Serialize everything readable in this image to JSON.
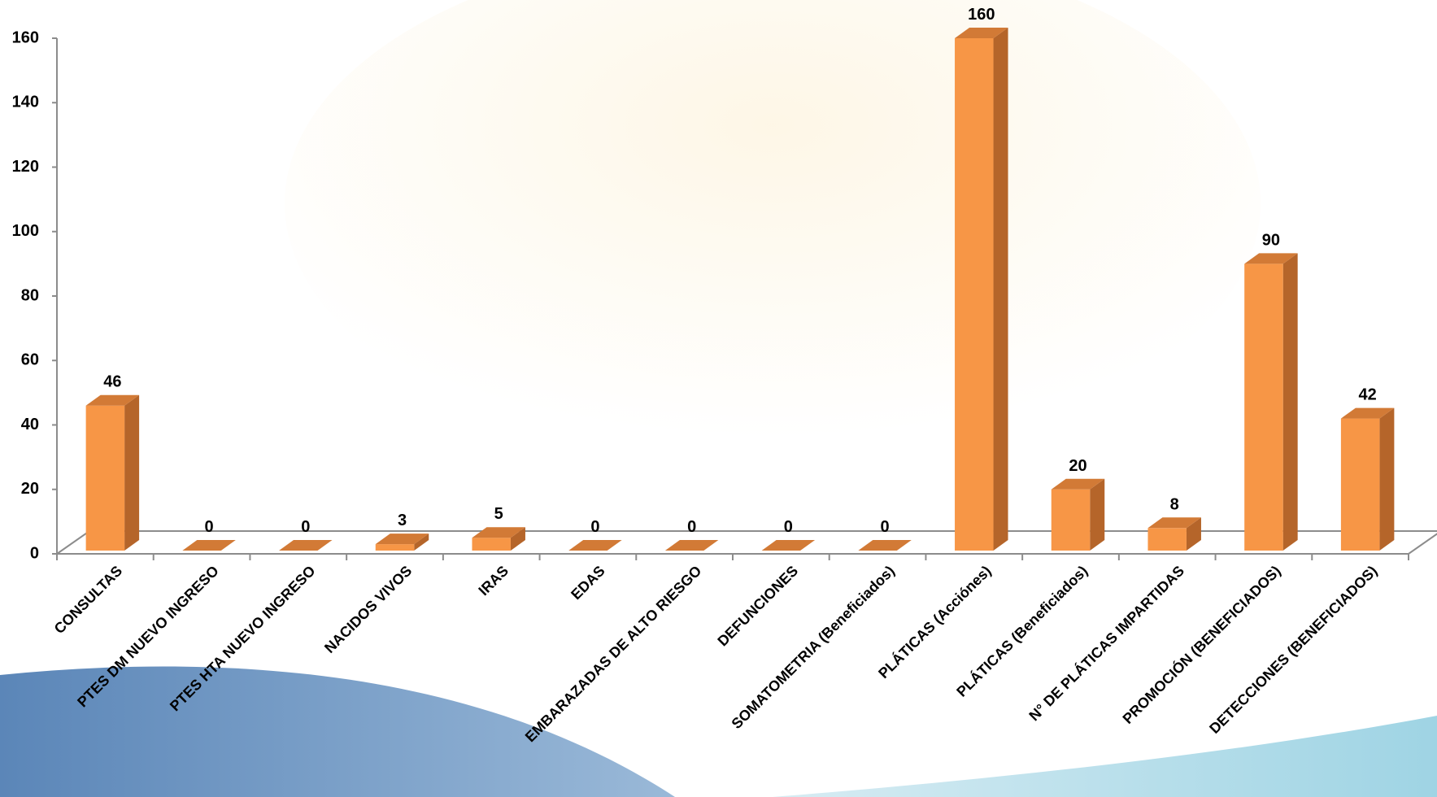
{
  "chart_data": {
    "type": "bar3d",
    "categories": [
      "CONSULTAS",
      "PTES DM NUEVO INGRESO",
      "PTES HTA NUEVO INGRESO",
      "NACIDOS VIVOS",
      "IRAS",
      "EDAS",
      "EMBARAZADAS DE ALTO RIESGO",
      "DEFUNCIONES",
      "SOMATOMETRIA (Beneficiados)",
      "PLÁTICAS (Acciónes)",
      "PLÁTICAS (Beneficiados)",
      "N° DE PLÁTICAS IMPARTIDAS",
      "PROMOCIÓN (BENEFICIADOS)",
      "DETECCIONES (BENEFICIADOS)"
    ],
    "values": [
      46,
      0,
      0,
      3,
      5,
      0,
      0,
      0,
      0,
      160,
      20,
      8,
      90,
      42
    ],
    "color": "#f79646",
    "ylim": [
      0,
      160
    ],
    "yticks": [
      0,
      20,
      40,
      60,
      80,
      100,
      120,
      140,
      160
    ]
  }
}
